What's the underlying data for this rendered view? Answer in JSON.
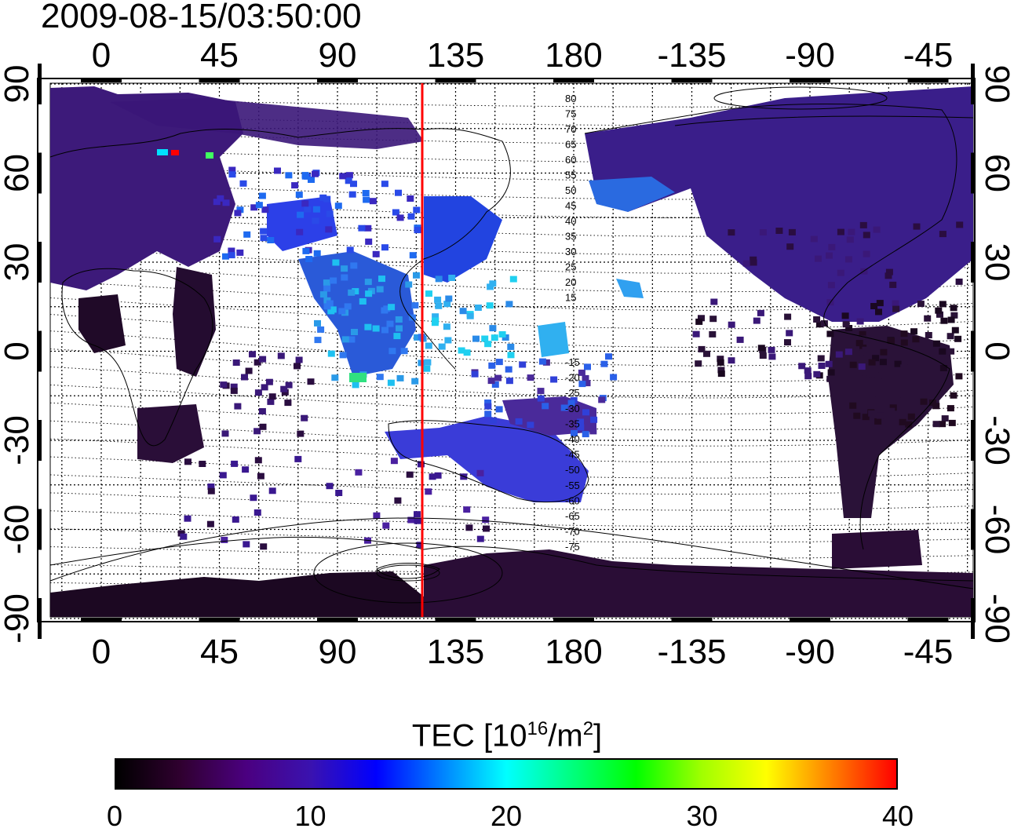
{
  "title": "2009-08-15/03:50:00",
  "map": {
    "top_lon_labels": [
      "0",
      "45",
      "90",
      "135",
      "180",
      "-135",
      "-90",
      "-45"
    ],
    "bottom_lon_labels": [
      "0",
      "45",
      "90",
      "135",
      "180",
      "-135",
      "-90",
      "-45"
    ],
    "left_lat_labels": [
      "90",
      "60",
      "30",
      "0",
      "-30",
      "-60",
      "-90"
    ],
    "right_lat_labels": [
      "90",
      "60",
      "30",
      "0",
      "-30",
      "-60",
      "-90"
    ],
    "meridian_line": {
      "lon": 123,
      "color": "#ff0000"
    },
    "contour_labels_north": [
      "80",
      "75",
      "70",
      "65",
      "60",
      "55",
      "50",
      "45",
      "40",
      "35",
      "30",
      "25",
      "20",
      "15"
    ],
    "contour_labels_south": [
      "-15",
      "-20",
      "-25",
      "-30",
      "-35",
      "-40",
      "-45",
      "-50",
      "-55",
      "-60",
      "-65",
      "-70",
      "-75"
    ]
  },
  "colorbar": {
    "title": "TEC  [10",
    "title_exp": "16",
    "title_unit": "/m",
    "title_unit_exp": "2",
    "title_end": "]",
    "ticks": [
      "0",
      "10",
      "20",
      "30",
      "40"
    ],
    "range": [
      0,
      40
    ],
    "stops": [
      "#000000",
      "#300030",
      "#4b0080",
      "#3a12b0",
      "#0000ff",
      "#0080ff",
      "#00ffff",
      "#00ff80",
      "#00ff00",
      "#a0ff00",
      "#ffff00",
      "#ff8000",
      "#ff0000"
    ]
  }
}
